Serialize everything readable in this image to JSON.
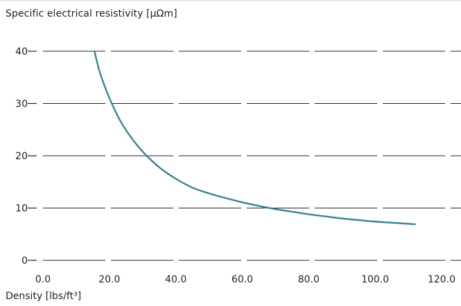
{
  "chart_data": {
    "type": "line",
    "title": "",
    "ylabel": "Specific electrical resistivity [µΩm]",
    "xlabel": "Density [lbs/ft³]",
    "xlim": [
      0,
      120
    ],
    "ylim": [
      0,
      40
    ],
    "x_ticks": [
      "0.0",
      "20.0",
      "40.0",
      "60.0",
      "80.0",
      "100.0",
      "120.0"
    ],
    "y_ticks": [
      "0",
      "10",
      "20",
      "30",
      "40"
    ],
    "grid": true,
    "grid_style": "dashed horizontal",
    "series_color": "#3a8290",
    "series": [
      {
        "x": [
          15.5,
          17,
          19,
          21,
          23,
          25,
          27.5,
          30,
          33,
          36,
          40,
          45,
          50,
          55,
          60,
          65,
          70,
          75,
          80,
          85,
          90,
          95,
          100,
          105,
          112
        ],
        "y": [
          40.0,
          36.2,
          32.6,
          29.6,
          27.0,
          24.9,
          22.7,
          20.8,
          18.9,
          17.3,
          15.6,
          13.9,
          12.8,
          11.9,
          11.1,
          10.4,
          9.8,
          9.3,
          8.8,
          8.4,
          8.0,
          7.7,
          7.4,
          7.2,
          6.9
        ]
      }
    ]
  }
}
